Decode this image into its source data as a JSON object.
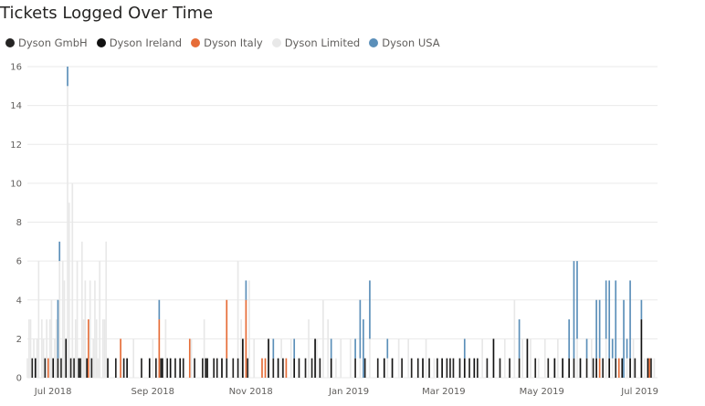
{
  "chart_data": {
    "type": "bar",
    "title": "Tickets Logged Over Time",
    "stacked": true,
    "grid": true,
    "legend_position": "top-left",
    "ylim": [
      0,
      16
    ],
    "yticks": [
      0,
      2,
      4,
      6,
      8,
      10,
      12,
      14,
      16
    ],
    "xlim": [
      "2018-06-15",
      "2019-07-12"
    ],
    "xticks": [
      {
        "date": "2018-07-01",
        "label": "Jul 2018"
      },
      {
        "date": "2018-09-01",
        "label": "Sep 2018"
      },
      {
        "date": "2018-11-01",
        "label": "Nov 2018"
      },
      {
        "date": "2019-01-01",
        "label": "Jan 2019"
      },
      {
        "date": "2019-03-01",
        "label": "Mar 2019"
      },
      {
        "date": "2019-05-01",
        "label": "May 2019"
      },
      {
        "date": "2019-07-01",
        "label": "Jul 2019"
      }
    ],
    "series": [
      {
        "name": "Dyson GmbH",
        "color": "#252423",
        "points": [
          [
            "2018-06-18",
            1
          ],
          [
            "2018-06-26",
            1
          ],
          [
            "2018-07-04",
            1
          ],
          [
            "2018-07-06",
            1
          ],
          [
            "2018-07-12",
            1
          ],
          [
            "2018-07-14",
            1
          ],
          [
            "2018-07-18",
            1
          ],
          [
            "2018-07-25",
            1
          ],
          [
            "2018-08-09",
            1
          ],
          [
            "2018-08-14",
            1
          ],
          [
            "2018-08-25",
            1
          ],
          [
            "2018-09-03",
            1
          ],
          [
            "2018-09-06",
            1
          ],
          [
            "2018-09-10",
            1
          ],
          [
            "2018-09-15",
            1
          ],
          [
            "2018-09-20",
            1
          ],
          [
            "2018-09-27",
            1
          ],
          [
            "2018-10-02",
            1
          ],
          [
            "2018-10-05",
            1
          ],
          [
            "2018-10-09",
            1
          ],
          [
            "2018-10-11",
            1
          ],
          [
            "2018-10-17",
            1
          ],
          [
            "2018-10-21",
            1
          ],
          [
            "2018-10-24",
            1
          ],
          [
            "2018-10-30",
            1
          ],
          [
            "2018-11-15",
            1
          ],
          [
            "2018-11-21",
            1
          ],
          [
            "2018-12-01",
            1
          ],
          [
            "2018-12-05",
            1
          ],
          [
            "2018-12-09",
            1
          ],
          [
            "2018-12-14",
            1
          ],
          [
            "2019-01-05",
            1
          ],
          [
            "2019-01-11",
            1
          ],
          [
            "2019-01-19",
            1
          ],
          [
            "2019-02-03",
            1
          ],
          [
            "2019-02-09",
            1
          ],
          [
            "2019-02-13",
            1
          ],
          [
            "2019-02-20",
            1
          ],
          [
            "2019-02-25",
            1
          ],
          [
            "2019-03-03",
            1
          ],
          [
            "2019-03-05",
            1
          ],
          [
            "2019-03-07",
            1
          ],
          [
            "2019-03-11",
            1
          ],
          [
            "2019-03-17",
            1
          ],
          [
            "2019-03-22",
            1
          ],
          [
            "2019-03-28",
            1
          ],
          [
            "2019-04-05",
            1
          ],
          [
            "2019-04-11",
            1
          ],
          [
            "2019-04-17",
            1
          ],
          [
            "2019-04-27",
            1
          ],
          [
            "2019-05-05",
            1
          ],
          [
            "2019-05-21",
            1
          ],
          [
            "2019-05-29",
            1
          ],
          [
            "2019-06-02",
            1
          ],
          [
            "2019-06-08",
            1
          ],
          [
            "2019-06-16",
            1
          ],
          [
            "2019-06-28",
            1
          ],
          [
            "2019-07-08",
            1
          ]
        ]
      },
      {
        "name": "Dyson Ireland",
        "color": "#111111",
        "points": [
          [
            "2018-06-20",
            1
          ],
          [
            "2018-07-01",
            1
          ],
          [
            "2018-07-09",
            2
          ],
          [
            "2018-07-17",
            1
          ],
          [
            "2018-07-22",
            1
          ],
          [
            "2018-08-04",
            1
          ],
          [
            "2018-08-16",
            1
          ],
          [
            "2018-08-30",
            1
          ],
          [
            "2018-09-07",
            1
          ],
          [
            "2018-09-12",
            1
          ],
          [
            "2018-09-18",
            1
          ],
          [
            "2018-10-04",
            1
          ],
          [
            "2018-10-14",
            1
          ],
          [
            "2018-10-27",
            2
          ],
          [
            "2018-11-12",
            2
          ],
          [
            "2018-11-18",
            1
          ],
          [
            "2018-11-28",
            1
          ],
          [
            "2018-12-11",
            2
          ],
          [
            "2018-12-21",
            1
          ],
          [
            "2019-01-23",
            1
          ],
          [
            "2019-01-28",
            1
          ],
          [
            "2019-02-16",
            1
          ],
          [
            "2019-02-28",
            1
          ],
          [
            "2019-03-14",
            1
          ],
          [
            "2019-03-20",
            1
          ],
          [
            "2019-04-01",
            2
          ],
          [
            "2019-04-22",
            2
          ],
          [
            "2019-05-09",
            1
          ],
          [
            "2019-05-14",
            1
          ],
          [
            "2019-05-18",
            1
          ],
          [
            "2019-05-25",
            1
          ],
          [
            "2019-06-04",
            1
          ],
          [
            "2019-06-12",
            1
          ],
          [
            "2019-06-20",
            1
          ],
          [
            "2019-06-25",
            1
          ],
          [
            "2019-07-02",
            3
          ],
          [
            "2019-07-06",
            1
          ]
        ]
      },
      {
        "name": "Dyson Italy",
        "color": "#e66c37",
        "points": [
          [
            "2018-06-28",
            1
          ],
          [
            "2018-07-23",
            3
          ],
          [
            "2018-08-12",
            2
          ],
          [
            "2018-09-05",
            3
          ],
          [
            "2018-09-24",
            2
          ],
          [
            "2018-10-17",
            3
          ],
          [
            "2018-10-29",
            4
          ],
          [
            "2018-11-08",
            1
          ],
          [
            "2018-11-10",
            1
          ],
          [
            "2018-11-23",
            1
          ],
          [
            "2019-06-06",
            1
          ],
          [
            "2019-06-18",
            1
          ],
          [
            "2019-07-07",
            1
          ]
        ]
      },
      {
        "name": "Dyson Limited",
        "color": "#e8e8e8",
        "points": [
          [
            "2018-06-15",
            1
          ],
          [
            "2018-06-16",
            3
          ],
          [
            "2018-06-17",
            3
          ],
          [
            "2018-06-19",
            2
          ],
          [
            "2018-06-21",
            2
          ],
          [
            "2018-06-22",
            6
          ],
          [
            "2018-06-24",
            3
          ],
          [
            "2018-06-25",
            2
          ],
          [
            "2018-06-27",
            3
          ],
          [
            "2018-06-29",
            3
          ],
          [
            "2018-06-30",
            4
          ],
          [
            "2018-07-02",
            2
          ],
          [
            "2018-07-03",
            3
          ],
          [
            "2018-07-05",
            6
          ],
          [
            "2018-07-07",
            6
          ],
          [
            "2018-07-08",
            5
          ],
          [
            "2018-07-10",
            15
          ],
          [
            "2018-07-11",
            9
          ],
          [
            "2018-07-13",
            10
          ],
          [
            "2018-07-15",
            3
          ],
          [
            "2018-07-16",
            6
          ],
          [
            "2018-07-19",
            7
          ],
          [
            "2018-07-20",
            3
          ],
          [
            "2018-07-21",
            5
          ],
          [
            "2018-07-24",
            5
          ],
          [
            "2018-07-26",
            2
          ],
          [
            "2018-07-27",
            5
          ],
          [
            "2018-07-28",
            3
          ],
          [
            "2018-07-29",
            1
          ],
          [
            "2018-07-30",
            6
          ],
          [
            "2018-08-01",
            3
          ],
          [
            "2018-08-02",
            3
          ],
          [
            "2018-08-03",
            7
          ],
          [
            "2018-08-20",
            2
          ],
          [
            "2018-09-01",
            2
          ],
          [
            "2018-09-09",
            3
          ],
          [
            "2018-09-25",
            2
          ],
          [
            "2018-10-03",
            3
          ],
          [
            "2018-10-24",
            5
          ],
          [
            "2018-10-26",
            3
          ],
          [
            "2018-10-31",
            5
          ],
          [
            "2018-11-03",
            2
          ],
          [
            "2018-11-20",
            2
          ],
          [
            "2018-11-26",
            2
          ],
          [
            "2018-12-07",
            3
          ],
          [
            "2018-12-12",
            2
          ],
          [
            "2018-12-16",
            4
          ],
          [
            "2018-12-19",
            3
          ],
          [
            "2018-12-24",
            1
          ],
          [
            "2018-12-27",
            2
          ],
          [
            "2019-01-02",
            2
          ],
          [
            "2019-01-08",
            1
          ],
          [
            "2019-01-14",
            2
          ],
          [
            "2019-01-25",
            1
          ],
          [
            "2019-02-01",
            2
          ],
          [
            "2019-02-07",
            2
          ],
          [
            "2019-02-18",
            2
          ],
          [
            "2019-02-23",
            1
          ],
          [
            "2019-03-25",
            2
          ],
          [
            "2019-04-08",
            2
          ],
          [
            "2019-04-14",
            4
          ],
          [
            "2019-04-19",
            2
          ],
          [
            "2019-04-24",
            2
          ],
          [
            "2019-04-29",
            1
          ],
          [
            "2019-05-03",
            2
          ],
          [
            "2019-05-11",
            2
          ],
          [
            "2019-05-23",
            2
          ],
          [
            "2019-06-01",
            2
          ],
          [
            "2019-06-10",
            2
          ],
          [
            "2019-06-14",
            1
          ],
          [
            "2019-06-23",
            1
          ],
          [
            "2019-06-27",
            2
          ],
          [
            "2019-07-04",
            1
          ],
          [
            "2019-07-10",
            1
          ]
        ]
      },
      {
        "name": "Dyson USA",
        "color": "#5b8fb9",
        "points": [
          [
            "2018-07-04",
            3
          ],
          [
            "2018-07-05",
            1
          ],
          [
            "2018-07-10",
            1
          ],
          [
            "2018-09-05",
            1
          ],
          [
            "2018-10-29",
            1
          ],
          [
            "2018-11-15",
            1
          ],
          [
            "2018-11-28",
            1
          ],
          [
            "2018-12-21",
            1
          ],
          [
            "2019-01-05",
            1
          ],
          [
            "2019-01-08",
            3
          ],
          [
            "2019-01-10",
            3
          ],
          [
            "2019-01-14",
            3
          ],
          [
            "2019-01-25",
            1
          ],
          [
            "2019-03-14",
            1
          ],
          [
            "2019-04-17",
            2
          ],
          [
            "2019-05-18",
            2
          ],
          [
            "2019-05-21",
            5
          ],
          [
            "2019-05-23",
            4
          ],
          [
            "2019-05-29",
            1
          ],
          [
            "2019-06-04",
            3
          ],
          [
            "2019-06-06",
            3
          ],
          [
            "2019-06-10",
            3
          ],
          [
            "2019-06-12",
            4
          ],
          [
            "2019-06-14",
            1
          ],
          [
            "2019-06-16",
            4
          ],
          [
            "2019-06-21",
            4
          ],
          [
            "2019-06-23",
            1
          ],
          [
            "2019-06-25",
            4
          ],
          [
            "2019-07-02",
            1
          ]
        ]
      }
    ]
  }
}
